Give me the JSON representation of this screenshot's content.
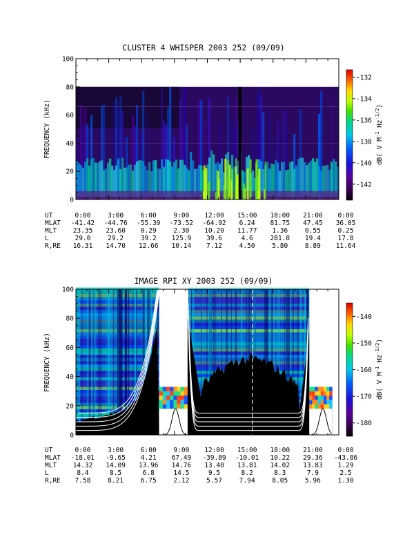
{
  "chart_data": [
    {
      "type": "heatmap",
      "title": "CLUSTER 4 WHISPER 2003 252 (09/09)",
      "ylabel": "FREQUENCY (kHz)",
      "ylim": [
        0,
        100
      ],
      "yticks": [
        "0",
        "20",
        "40",
        "60",
        "80",
        "100"
      ],
      "x_range_hours": [
        0,
        24
      ],
      "colorbar": {
        "label": "dB( V M⁻¹ Hz⁻¹ᐟ²)",
        "label_main": "dB( V M",
        "label_sup1": "-1",
        "label_mid": " Hz",
        "label_sup2": "-1/2",
        "label_end": ")",
        "range": [
          -143.5,
          -131.3
        ],
        "ticks": [
          "-132",
          "-134",
          "-136",
          "-138",
          "-140",
          "-142"
        ],
        "tick_values": [
          -132,
          -134,
          -136,
          -138,
          -140,
          -142
        ]
      },
      "data_freq_top": 80,
      "ephemeris": {
        "rows": [
          {
            "label": "UT",
            "values": [
              "0:00",
              "3:00",
              "6:00",
              "9:00",
              "12:00",
              "15:00",
              "18:00",
              "21:00",
              "0:00"
            ]
          },
          {
            "label": "MLAT",
            "values": [
              "-41.42",
              "-44.76",
              "-55.39",
              "-73.52",
              "-64.92",
              "6.24",
              "81.75",
              "47.45",
              "36.05"
            ]
          },
          {
            "label": "MLT",
            "values": [
              "23.35",
              "23.60",
              "0.29",
              "2.30",
              "10.20",
              "11.77",
              "1.36",
              "0.55",
              "0.25"
            ]
          },
          {
            "label": "L",
            "values": [
              "29.0",
              "29.2",
              "39.2",
              "125.9",
              "39.6",
              "4.6",
              "281.8",
              "19.4",
              "17.8"
            ]
          },
          {
            "label": "R,RE",
            "values": [
              "16.31",
              "14.70",
              "12.66",
              "10.14",
              "7.12",
              "4.50",
              "5.80",
              "8.89",
              "11.64"
            ]
          }
        ]
      }
    },
    {
      "type": "heatmap",
      "title": "IMAGE RPI XY 2003 252 (09/09)",
      "ylabel": "FREQUENCY (kHz)",
      "ylim": [
        0,
        100
      ],
      "yticks": [
        "0",
        "20",
        "40",
        "60",
        "80",
        "100"
      ],
      "x_range_hours": [
        0,
        24
      ],
      "colorbar": {
        "label_main": "dB( V M",
        "label_sup1": "-1",
        "label_mid": " Hz",
        "label_sup2": "-1/2",
        "label_end": ")",
        "range": [
          -185,
          -135
        ],
        "ticks": [
          "-140",
          "-150",
          "-160",
          "-170",
          "-180"
        ],
        "tick_values": [
          -140,
          -150,
          -160,
          -170,
          -180
        ]
      },
      "data_gaps_hours": [
        [
          7.6,
          10.2
        ],
        [
          21.3,
          23.4
        ]
      ],
      "ephemeris": {
        "rows": [
          {
            "label": "UT",
            "values": [
              "0:00",
              "3:00",
              "6:00",
              "9:00",
              "12:00",
              "15:00",
              "18:00",
              "21:00",
              "0:00"
            ]
          },
          {
            "label": "MLAT",
            "values": [
              "-18.01",
              "-9.65",
              "4.21",
              "67.49",
              "-39.89",
              "-10.01",
              "10.22",
              "29.36",
              "-43.86"
            ]
          },
          {
            "label": "MLT",
            "values": [
              "14.32",
              "14.09",
              "13.96",
              "14.76",
              "13.40",
              "13.81",
              "14.02",
              "13.83",
              "1.29"
            ]
          },
          {
            "label": "L",
            "values": [
              "8.4",
              "8.5",
              "6.8",
              "14.5",
              "9.5",
              "8.2",
              "8.3",
              "7.9",
              "2.5"
            ]
          },
          {
            "label": "R,RE",
            "values": [
              "7.58",
              "8.21",
              "6.75",
              "2.12",
              "5.57",
              "7.94",
              "8.05",
              "5.96",
              "1.30"
            ]
          }
        ]
      }
    }
  ]
}
